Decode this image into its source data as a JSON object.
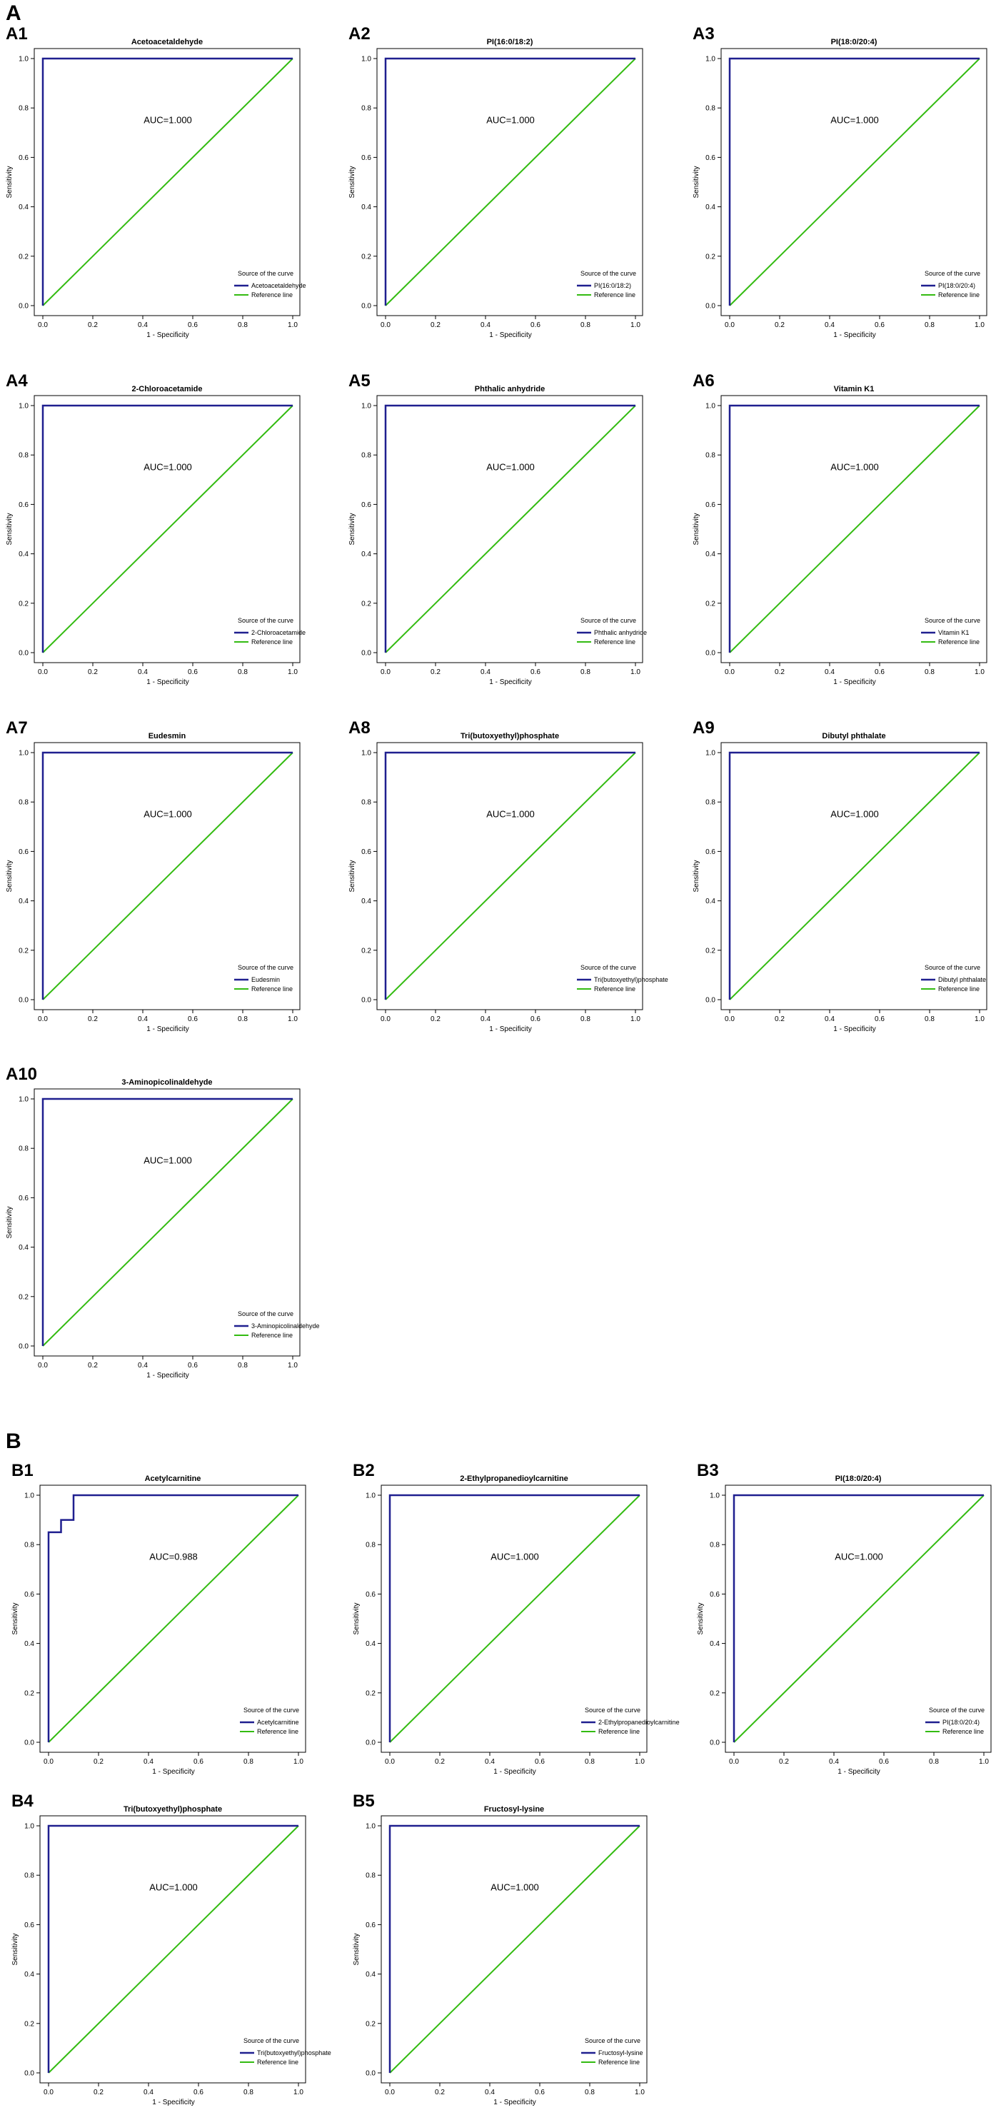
{
  "sections": [
    {
      "label": "A"
    },
    {
      "label": "B"
    }
  ],
  "axis": {
    "xlabel": "1 - Specificity",
    "ylabel": "Sensitivity",
    "ticks": [
      "0.0",
      "0.2",
      "0.4",
      "0.6",
      "0.8",
      "1.0"
    ]
  },
  "legend": {
    "title": "Source of the curve",
    "reference_label": "Reference line"
  },
  "colors": {
    "roc": "#1f1f8f",
    "reference": "#33bb11"
  },
  "chart_data": [
    {
      "type": "line",
      "panel": "A1",
      "title": "Acetoacetaldehyde",
      "auc_text": "AUC=1.000",
      "xlabel": "1 - Specificity",
      "ylabel": "Sensitivity",
      "xlim": [
        0,
        1
      ],
      "ylim": [
        0,
        1
      ],
      "legend_placement": "bottom-right",
      "series": [
        {
          "name": "Acetoacetaldehyde",
          "x": [
            0,
            0,
            1
          ],
          "y": [
            0,
            1,
            1
          ]
        },
        {
          "name": "Reference line",
          "x": [
            0,
            1
          ],
          "y": [
            0,
            1
          ]
        }
      ]
    },
    {
      "type": "line",
      "panel": "A2",
      "title": "PI(16:0/18:2)",
      "auc_text": "AUC=1.000",
      "xlabel": "1 - Specificity",
      "ylabel": "Sensitivity",
      "xlim": [
        0,
        1
      ],
      "ylim": [
        0,
        1
      ],
      "legend_placement": "bottom-right",
      "series": [
        {
          "name": "PI(16:0/18:2)",
          "x": [
            0,
            0,
            1
          ],
          "y": [
            0,
            1,
            1
          ]
        },
        {
          "name": "Reference line",
          "x": [
            0,
            1
          ],
          "y": [
            0,
            1
          ]
        }
      ]
    },
    {
      "type": "line",
      "panel": "A3",
      "title": "PI(18:0/20:4)",
      "auc_text": "AUC=1.000",
      "xlabel": "1 - Specificity",
      "ylabel": "Sensitivity",
      "xlim": [
        0,
        1
      ],
      "ylim": [
        0,
        1
      ],
      "legend_placement": "bottom-right",
      "series": [
        {
          "name": "PI(18:0/20:4)",
          "x": [
            0,
            0,
            1
          ],
          "y": [
            0,
            1,
            1
          ]
        },
        {
          "name": "Reference line",
          "x": [
            0,
            1
          ],
          "y": [
            0,
            1
          ]
        }
      ]
    },
    {
      "type": "line",
      "panel": "A4",
      "title": "2-Chloroacetamide",
      "auc_text": "AUC=1.000",
      "xlabel": "1 - Specificity",
      "ylabel": "Sensitivity",
      "xlim": [
        0,
        1
      ],
      "ylim": [
        0,
        1
      ],
      "legend_placement": "bottom-right",
      "series": [
        {
          "name": "2-Chloroacetamide",
          "x": [
            0,
            0,
            1
          ],
          "y": [
            0,
            1,
            1
          ]
        },
        {
          "name": "Reference line",
          "x": [
            0,
            1
          ],
          "y": [
            0,
            1
          ]
        }
      ]
    },
    {
      "type": "line",
      "panel": "A5",
      "title": "Phthalic anhydride",
      "auc_text": "AUC=1.000",
      "xlabel": "1 - Specificity",
      "ylabel": "Sensitivity",
      "xlim": [
        0,
        1
      ],
      "ylim": [
        0,
        1
      ],
      "legend_placement": "bottom-right",
      "series": [
        {
          "name": "Phthalic anhydride",
          "x": [
            0,
            0,
            1
          ],
          "y": [
            0,
            1,
            1
          ]
        },
        {
          "name": "Reference line",
          "x": [
            0,
            1
          ],
          "y": [
            0,
            1
          ]
        }
      ]
    },
    {
      "type": "line",
      "panel": "A6",
      "title": "Vitamin K1",
      "auc_text": "AUC=1.000",
      "xlabel": "1 - Specificity",
      "ylabel": "Sensitivity",
      "xlim": [
        0,
        1
      ],
      "ylim": [
        0,
        1
      ],
      "legend_placement": "bottom-right",
      "series": [
        {
          "name": "Vitamin K1",
          "x": [
            0,
            0,
            1
          ],
          "y": [
            0,
            1,
            1
          ]
        },
        {
          "name": "Reference line",
          "x": [
            0,
            1
          ],
          "y": [
            0,
            1
          ]
        }
      ]
    },
    {
      "type": "line",
      "panel": "A7",
      "title": "Eudesmin",
      "auc_text": "AUC=1.000",
      "xlabel": "1 - Specificity",
      "ylabel": "Sensitivity",
      "xlim": [
        0,
        1
      ],
      "ylim": [
        0,
        1
      ],
      "legend_placement": "bottom-right",
      "series": [
        {
          "name": "Eudesmin",
          "x": [
            0,
            0,
            1
          ],
          "y": [
            0,
            1,
            1
          ]
        },
        {
          "name": "Reference line",
          "x": [
            0,
            1
          ],
          "y": [
            0,
            1
          ]
        }
      ]
    },
    {
      "type": "line",
      "panel": "A8",
      "title": "Tri(butoxyethyl)phosphate",
      "auc_text": "AUC=1.000",
      "xlabel": "1 - Specificity",
      "ylabel": "Sensitivity",
      "xlim": [
        0,
        1
      ],
      "ylim": [
        0,
        1
      ],
      "legend_placement": "bottom-right",
      "series": [
        {
          "name": "Tri(butoxyethyl)phosphate",
          "x": [
            0,
            0,
            1
          ],
          "y": [
            0,
            1,
            1
          ]
        },
        {
          "name": "Reference line",
          "x": [
            0,
            1
          ],
          "y": [
            0,
            1
          ]
        }
      ]
    },
    {
      "type": "line",
      "panel": "A9",
      "title": "Dibutyl phthalate",
      "auc_text": "AUC=1.000",
      "xlabel": "1 - Specificity",
      "ylabel": "Sensitivity",
      "xlim": [
        0,
        1
      ],
      "ylim": [
        0,
        1
      ],
      "legend_placement": "bottom-right",
      "series": [
        {
          "name": "Dibutyl phthalate",
          "x": [
            0,
            0,
            1
          ],
          "y": [
            0,
            1,
            1
          ]
        },
        {
          "name": "Reference line",
          "x": [
            0,
            1
          ],
          "y": [
            0,
            1
          ]
        }
      ]
    },
    {
      "type": "line",
      "panel": "A10",
      "title": "3-Aminopicolinaldehyde",
      "auc_text": "AUC=1.000",
      "xlabel": "1 - Specificity",
      "ylabel": "Sensitivity",
      "xlim": [
        0,
        1
      ],
      "ylim": [
        0,
        1
      ],
      "legend_placement": "bottom-right",
      "series": [
        {
          "name": "3-Aminopicolinaldehyde",
          "x": [
            0,
            0,
            1
          ],
          "y": [
            0,
            1,
            1
          ]
        },
        {
          "name": "Reference line",
          "x": [
            0,
            1
          ],
          "y": [
            0,
            1
          ]
        }
      ]
    },
    {
      "type": "line",
      "panel": "B1",
      "title": "Acetylcarnitine",
      "auc_text": "AUC=0.988",
      "xlabel": "1 - Specificity",
      "ylabel": "Sensitivity",
      "xlim": [
        0,
        1
      ],
      "ylim": [
        0,
        1
      ],
      "legend_placement": "bottom-right",
      "series": [
        {
          "name": "Acetylcarnitine",
          "x": [
            0,
            0,
            0.05,
            0.05,
            0.1,
            0.1,
            1
          ],
          "y": [
            0,
            0.85,
            0.85,
            0.9,
            0.9,
            1,
            1
          ]
        },
        {
          "name": "Reference line",
          "x": [
            0,
            1
          ],
          "y": [
            0,
            1
          ]
        }
      ]
    },
    {
      "type": "line",
      "panel": "B2",
      "title": "2-Ethylpropanedioylcarnitine",
      "auc_text": "AUC=1.000",
      "xlabel": "1 - Specificity",
      "ylabel": "Sensitivity",
      "xlim": [
        0,
        1
      ],
      "ylim": [
        0,
        1
      ],
      "legend_placement": "bottom-right",
      "series": [
        {
          "name": "2-Ethylpropanedioylcarnitine",
          "x": [
            0,
            0,
            1
          ],
          "y": [
            0,
            1,
            1
          ]
        },
        {
          "name": "Reference line",
          "x": [
            0,
            1
          ],
          "y": [
            0,
            1
          ]
        }
      ]
    },
    {
      "type": "line",
      "panel": "B3",
      "title": "PI(18:0/20:4)",
      "auc_text": "AUC=1.000",
      "xlabel": "1 - Specificity",
      "ylabel": "Sensitivity",
      "xlim": [
        0,
        1
      ],
      "ylim": [
        0,
        1
      ],
      "legend_placement": "bottom-right",
      "series": [
        {
          "name": "PI(18:0/20:4)",
          "x": [
            0,
            0,
            1
          ],
          "y": [
            0,
            1,
            1
          ]
        },
        {
          "name": "Reference line",
          "x": [
            0,
            1
          ],
          "y": [
            0,
            1
          ]
        }
      ]
    },
    {
      "type": "line",
      "panel": "B4",
      "title": "Tri(butoxyethyl)phosphate",
      "auc_text": "AUC=1.000",
      "xlabel": "1 - Specificity",
      "ylabel": "Sensitivity",
      "xlim": [
        0,
        1
      ],
      "ylim": [
        0,
        1
      ],
      "legend_placement": "bottom-right",
      "series": [
        {
          "name": "Tri(butoxyethyl)phosphate",
          "x": [
            0,
            0,
            1
          ],
          "y": [
            0,
            1,
            1
          ]
        },
        {
          "name": "Reference line",
          "x": [
            0,
            1
          ],
          "y": [
            0,
            1
          ]
        }
      ]
    },
    {
      "type": "line",
      "panel": "B5",
      "title": "Fructosyl-lysine",
      "auc_text": "AUC=1.000",
      "xlabel": "1 - Specificity",
      "ylabel": "Sensitivity",
      "xlim": [
        0,
        1
      ],
      "ylim": [
        0,
        1
      ],
      "legend_placement": "bottom-right",
      "series": [
        {
          "name": "Fructosyl-lysine",
          "x": [
            0,
            0,
            1
          ],
          "y": [
            0,
            1,
            1
          ]
        },
        {
          "name": "Reference line",
          "x": [
            0,
            1
          ],
          "y": [
            0,
            1
          ]
        }
      ]
    }
  ]
}
